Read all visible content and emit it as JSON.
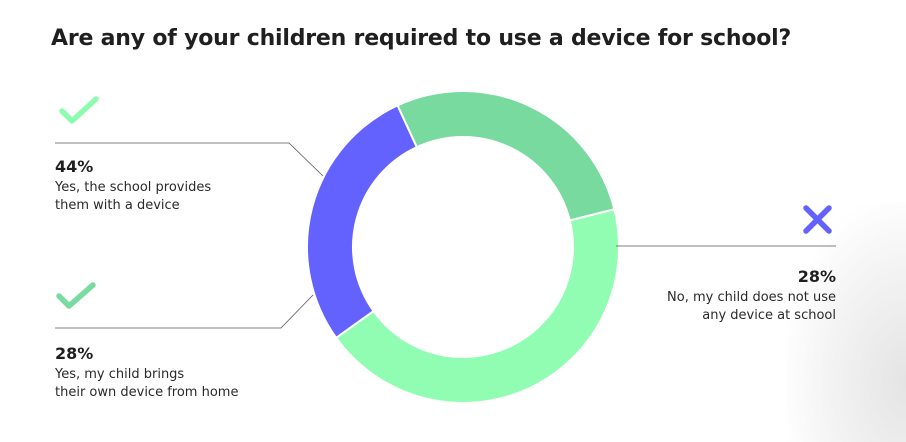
{
  "title": "Are any of your children required to use a device for school?",
  "chart_data": {
    "type": "pie",
    "title": "Are any of your children required to use a device for school?",
    "slices": [
      {
        "label": "Yes, the school provides them with a device",
        "value": 44,
        "color": "#90FDB2",
        "icon": "check-icon"
      },
      {
        "label": "No, my child does not use any device at school",
        "value": 28,
        "color": "#6462FF",
        "icon": "x-icon"
      },
      {
        "label": "Yes, my child brings their own device from home",
        "value": 28,
        "color": "#78DA9E",
        "icon": "check-icon"
      }
    ],
    "legend_position": "around"
  },
  "labels": [
    {
      "pct": "44%",
      "line1": "Yes, the school provides",
      "line2": "them with a device"
    },
    {
      "pct": "28%",
      "line1": "No, my child does not use",
      "line2": "any device at school"
    },
    {
      "pct": "28%",
      "line1": "Yes, my child brings",
      "line2": "their own device from home"
    }
  ]
}
